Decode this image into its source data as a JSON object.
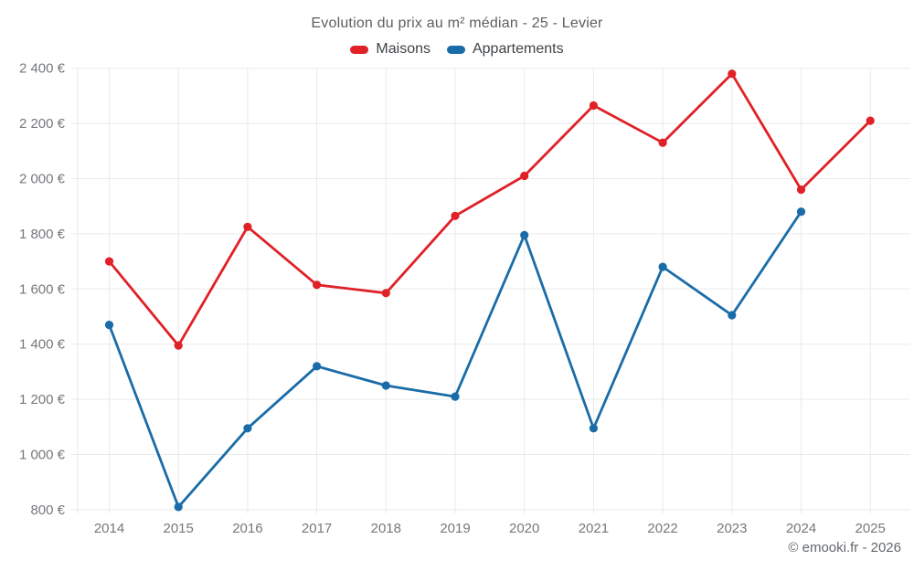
{
  "page": {
    "background": "#ffffff"
  },
  "footer": {
    "text": "© emooki.fr - 2026"
  },
  "chart_data": {
    "type": "line",
    "title": "Evolution du prix au m² médian - 25 - Levier",
    "categories": [
      "2014",
      "2015",
      "2016",
      "2017",
      "2018",
      "2019",
      "2020",
      "2021",
      "2022",
      "2023",
      "2024",
      "2025"
    ],
    "series": [
      {
        "name": "Maisons",
        "color": "#e02127",
        "values": [
          1700,
          1395,
          1825,
          1615,
          1585,
          1865,
          2010,
          2265,
          2130,
          2380,
          1960,
          2210
        ]
      },
      {
        "name": "Appartements",
        "color": "#1a6ca8",
        "values": [
          1470,
          810,
          1095,
          1320,
          1250,
          1210,
          1795,
          1095,
          1680,
          1505,
          1880,
          null
        ]
      }
    ],
    "xlabel": "",
    "ylabel": "",
    "ylim": [
      800,
      2400
    ],
    "yticks": [
      800,
      1000,
      1200,
      1400,
      1600,
      1800,
      2000,
      2200,
      2400
    ],
    "ytick_labels": [
      "800 €",
      "1 000 €",
      "1 200 €",
      "1 400 €",
      "1 600 €",
      "1 800 €",
      "2 000 €",
      "2 200 €",
      "2 400 €"
    ],
    "grid": true,
    "legend_position": "top",
    "point_markers": true,
    "grid_color": "#e9eaec",
    "axis_text_color": "#75787c"
  }
}
